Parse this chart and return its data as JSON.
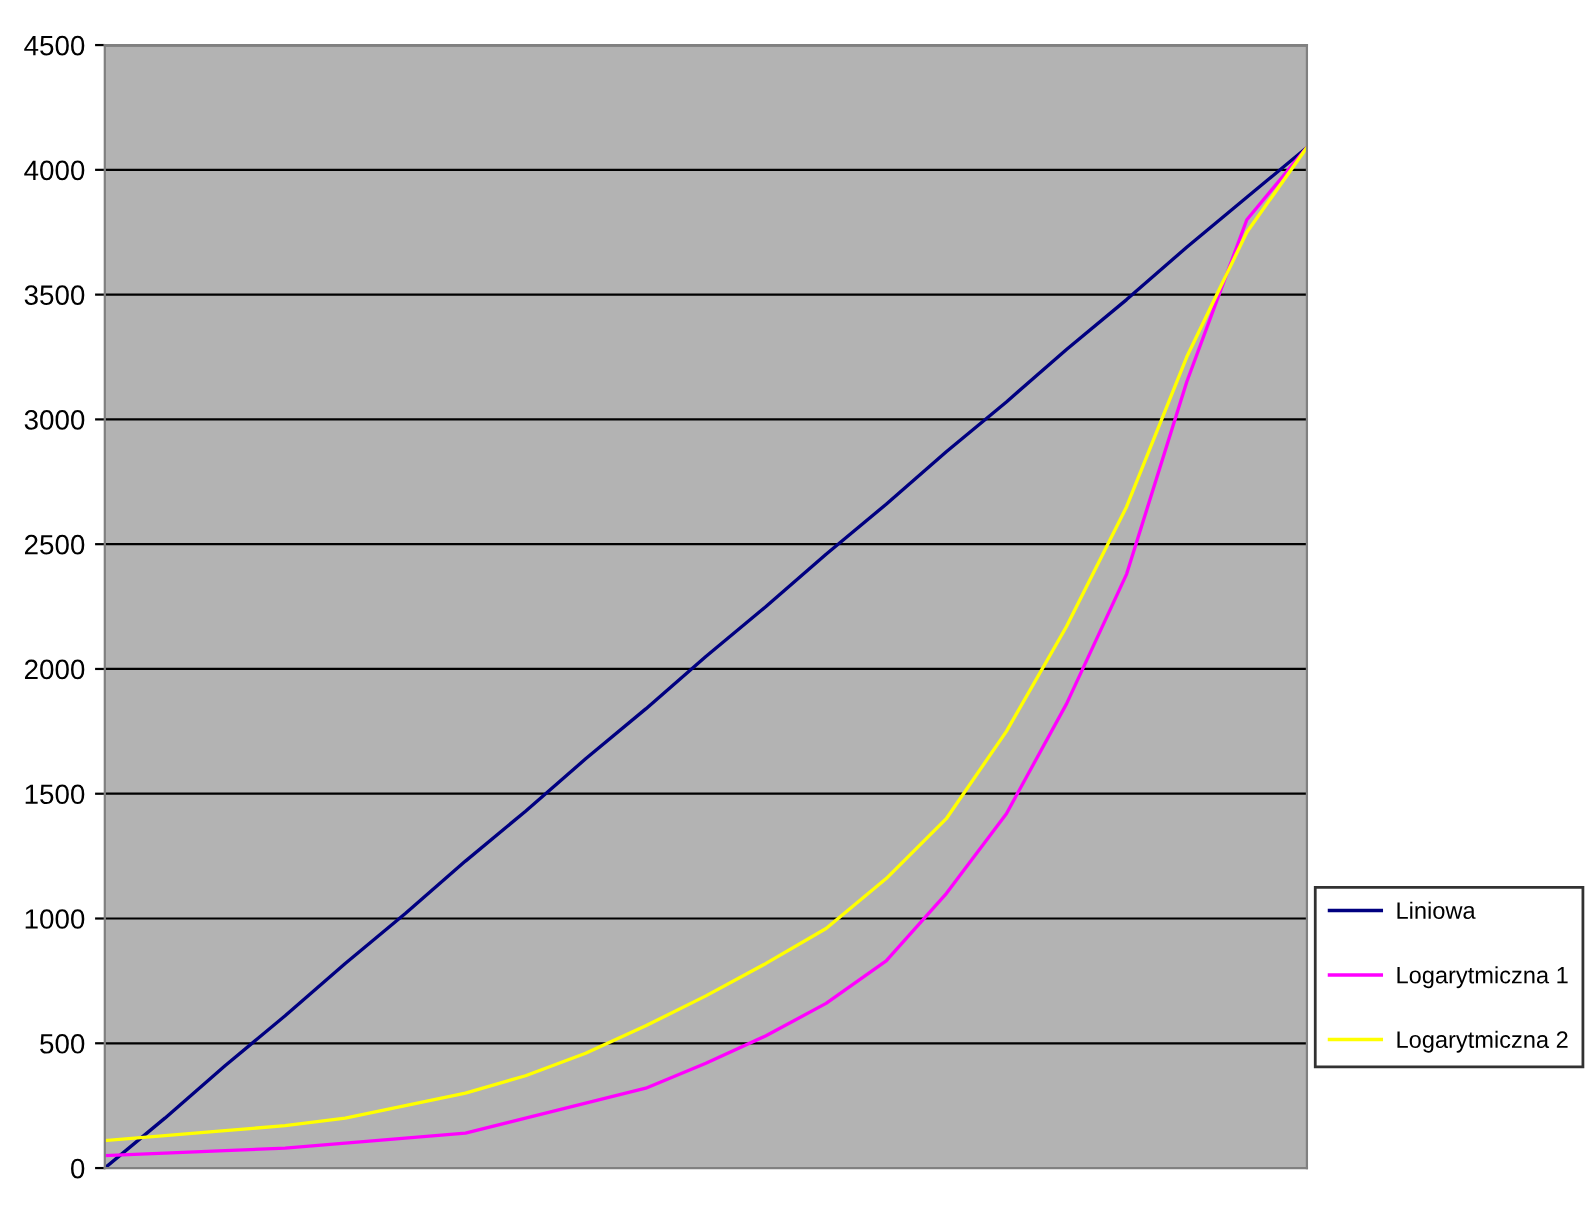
{
  "chart_data": {
    "type": "line",
    "categories": [
      null,
      null,
      null,
      null,
      null,
      null,
      null,
      null,
      null,
      null,
      null,
      null,
      null,
      null,
      null,
      null,
      null,
      null,
      null,
      null,
      null
    ],
    "series": [
      {
        "name": "Liniowa",
        "color": "#000080",
        "values": [
          0,
          200,
          410,
          610,
          820,
          1020,
          1230,
          1430,
          1640,
          1840,
          2050,
          2250,
          2460,
          2660,
          2870,
          3070,
          3280,
          3480,
          3690,
          3890,
          4090
        ]
      },
      {
        "name": "Logarytmiczna 1",
        "color": "#ff00ff",
        "values": [
          50,
          60,
          70,
          80,
          100,
          120,
          140,
          200,
          260,
          320,
          420,
          530,
          660,
          830,
          1100,
          1420,
          1860,
          2380,
          3150,
          3800,
          4090
        ]
      },
      {
        "name": "Logarytmiczna 2",
        "color": "#ffff00",
        "values": [
          110,
          130,
          150,
          170,
          200,
          250,
          300,
          370,
          460,
          570,
          690,
          820,
          960,
          1160,
          1400,
          1750,
          2170,
          2650,
          3250,
          3750,
          4090
        ]
      }
    ],
    "ylim": [
      0,
      4500
    ],
    "yticks": [
      0,
      500,
      1000,
      1500,
      2000,
      2500,
      3000,
      3500,
      4000,
      4500
    ],
    "grid": "y",
    "legend": "right",
    "tick_labels": "y",
    "marker": "none",
    "line_style": "solid"
  }
}
